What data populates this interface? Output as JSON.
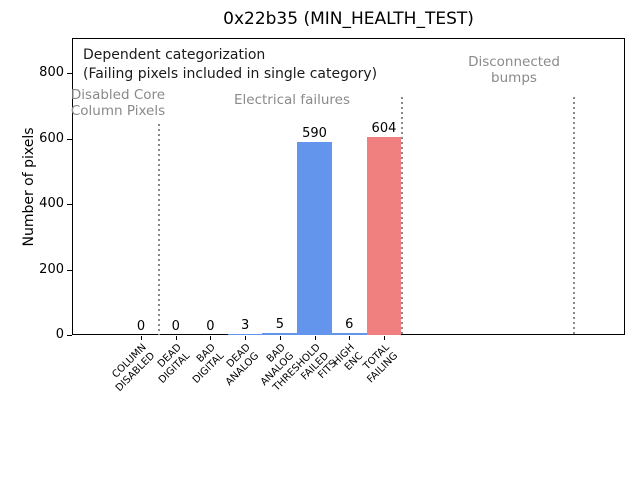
{
  "colors": {
    "bar_blue": "#6495ED",
    "bar_red": "#F08080",
    "gray_text": "#8a8a8a",
    "axis_black": "#000000"
  },
  "chart_data": {
    "type": "bar",
    "title": "0x22b35 (MIN_HEALTH_TEST)",
    "xlabel": "",
    "ylabel": "Number of pixels",
    "categories": [
      "COLUMN\nDISABLED",
      "DEAD\nDIGITAL",
      "BAD\nDIGITAL",
      "DEAD\nANALOG",
      "BAD\nANALOG",
      "THRESHOLD\nFAILED\nFITS",
      "HIGH\nENC",
      "TOTAL\nFAILING"
    ],
    "values": [
      0,
      0,
      0,
      3,
      5,
      590,
      6,
      604
    ],
    "bar_value_labels": [
      "0",
      "0",
      "0",
      "3",
      "5",
      "590",
      "6",
      "604"
    ],
    "bar_colors": [
      "#6495ED",
      "#6495ED",
      "#6495ED",
      "#6495ED",
      "#6495ED",
      "#6495ED",
      "#6495ED",
      "#F08080"
    ],
    "yticks": [
      0,
      200,
      400,
      600,
      800
    ],
    "ylim": [
      0,
      910
    ],
    "grid": false,
    "legend": null,
    "annotations": {
      "header_line1": "Dependent categorization",
      "header_line2": "(Failing pixels included in single category)",
      "region_disabled": "Disabled Core\nColumn Pixels",
      "region_electrical": "Electrical failures",
      "region_disconnected": "Disconnected\nbumps"
    },
    "separators": "three gray dotted vertical lines dividing category regions"
  }
}
